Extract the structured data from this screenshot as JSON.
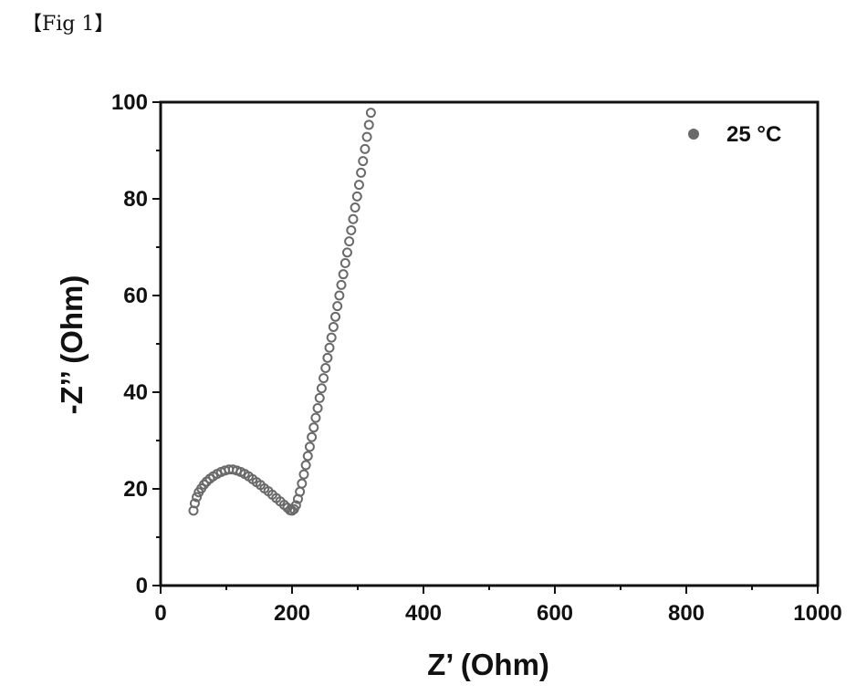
{
  "figure_label": "【Fig 1】",
  "chart_data": {
    "type": "scatter",
    "title": "",
    "xlabel": "Z’ (Ohm)",
    "ylabel": "-Z’’ (Ohm)",
    "xlim": [
      0,
      1000
    ],
    "ylim": [
      0,
      100
    ],
    "xticks": [
      0,
      200,
      400,
      600,
      800,
      1000
    ],
    "yticks": [
      0,
      20,
      40,
      60,
      80,
      100
    ],
    "grid": false,
    "legend_position": "top-right",
    "colors": {
      "marker": "#6a6a6a",
      "axis": "#111111"
    },
    "series": [
      {
        "name": "25 °C",
        "x": [
          50,
          52,
          55,
          58,
          62,
          66,
          70,
          75,
          80,
          86,
          92,
          98,
          104,
          110,
          116,
          122,
          128,
          134,
          140,
          146,
          152,
          158,
          164,
          170,
          176,
          182,
          188,
          193,
          197,
          200,
          203,
          206,
          209,
          212,
          215,
          218,
          221,
          224,
          227,
          230,
          233,
          236,
          239,
          242,
          245,
          248,
          251,
          254,
          257,
          260,
          263,
          266,
          269,
          272,
          275,
          278,
          281,
          284,
          287,
          290,
          293,
          296,
          299,
          302,
          305,
          308,
          311,
          314,
          317,
          320
        ],
        "y": [
          15.5,
          17,
          18.3,
          19.3,
          20.1,
          20.9,
          21.5,
          22.1,
          22.6,
          23.1,
          23.5,
          23.8,
          24,
          24,
          23.8,
          23.5,
          23.1,
          22.6,
          22,
          21.4,
          20.8,
          20.1,
          19.5,
          18.8,
          18.1,
          17.4,
          16.7,
          16.1,
          15.6,
          15.5,
          15.8,
          16.6,
          17.9,
          19.4,
          21.1,
          23,
          24.9,
          26.8,
          28.7,
          30.7,
          32.7,
          34.7,
          36.7,
          38.8,
          40.8,
          42.9,
          45,
          47.1,
          49.2,
          51.3,
          53.5,
          55.6,
          57.8,
          60,
          62.2,
          64.4,
          66.7,
          68.9,
          71.2,
          73.5,
          75.8,
          78.2,
          80.5,
          82.9,
          85.4,
          87.8,
          90.3,
          92.8,
          95.3,
          97.8
        ]
      }
    ]
  }
}
